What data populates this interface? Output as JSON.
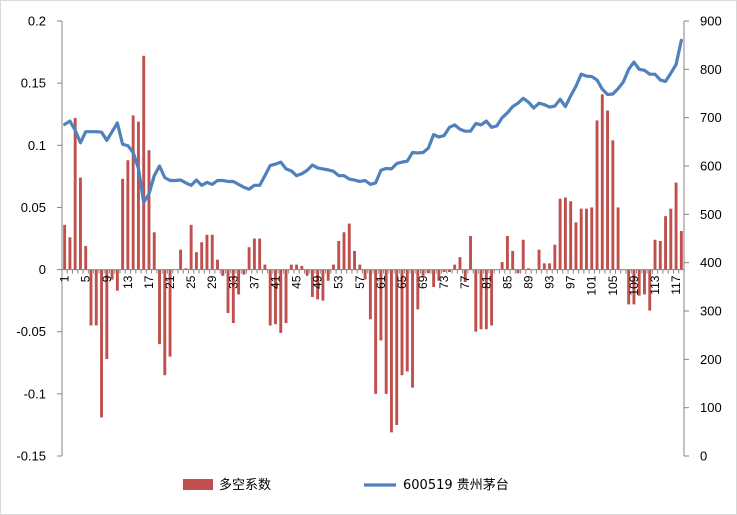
{
  "chart_data": {
    "type": "bar+line",
    "legend_position": "bottom",
    "grid": false,
    "colors": {
      "bar": "#C0504D",
      "line": "#4F81BD",
      "axis": "#868686"
    },
    "left_axis": {
      "ylim": [
        -0.15,
        0.2
      ],
      "tick_values": [
        -0.15,
        -0.1,
        -0.05,
        0,
        0.05,
        0.1,
        0.15,
        0.2
      ],
      "tick_labels": [
        "-0.15",
        "-0.1",
        "-0.05",
        "0",
        "0.05",
        "0.1",
        "0.15",
        "0.2"
      ]
    },
    "right_axis": {
      "ylim": [
        0,
        900
      ],
      "tick_values": [
        0,
        100,
        200,
        300,
        400,
        500,
        600,
        700,
        800,
        900
      ],
      "tick_labels": [
        "0",
        "100",
        "200",
        "300",
        "400",
        "500",
        "600",
        "700",
        "800",
        "900"
      ]
    },
    "x_axis": {
      "range": [
        1,
        118
      ],
      "tick_values": [
        1,
        5,
        9,
        13,
        17,
        21,
        25,
        29,
        33,
        37,
        41,
        45,
        49,
        53,
        57,
        61,
        65,
        69,
        73,
        77,
        81,
        85,
        89,
        93,
        97,
        101,
        105,
        109,
        113,
        117
      ],
      "tick_labels": [
        "1",
        "5",
        "9",
        "13",
        "17",
        "21",
        "25",
        "29",
        "33",
        "37",
        "41",
        "45",
        "49",
        "53",
        "57",
        "61",
        "65",
        "69",
        "73",
        "77",
        "81",
        "85",
        "89",
        "93",
        "97",
        "101",
        "105",
        "109",
        "113",
        "117"
      ]
    },
    "series": [
      {
        "name": "多空系数",
        "type": "bar",
        "axis": "left",
        "values": [
          0.036,
          0.026,
          0.122,
          0.074,
          0.019,
          -0.045,
          -0.045,
          -0.119,
          -0.072,
          -0.008,
          -0.017,
          0.073,
          0.088,
          0.124,
          0.119,
          0.172,
          0.096,
          0.03,
          -0.06,
          -0.085,
          -0.07,
          0.0,
          0.016,
          0.001,
          0.036,
          0.014,
          0.022,
          0.028,
          0.028,
          0.008,
          -0.005,
          -0.035,
          -0.043,
          -0.02,
          -0.004,
          0.018,
          0.025,
          0.025,
          0.004,
          -0.045,
          -0.044,
          -0.051,
          -0.043,
          0.004,
          0.004,
          0.003,
          -0.005,
          -0.022,
          -0.024,
          -0.025,
          -0.009,
          0.004,
          0.023,
          0.03,
          0.037,
          0.015,
          0.004,
          -0.008,
          -0.04,
          -0.1,
          -0.057,
          -0.1,
          -0.131,
          -0.125,
          -0.085,
          -0.082,
          -0.095,
          -0.032,
          -0.005,
          -0.003,
          -0.014,
          -0.009,
          -0.002,
          -0.002,
          0.004,
          0.01,
          -0.01,
          0.027,
          -0.05,
          -0.048,
          -0.048,
          -0.045,
          0.0,
          0.006,
          0.027,
          0.015,
          -0.003,
          0.024,
          0.001,
          0.0,
          0.016,
          0.005,
          0.005,
          0.02,
          0.057,
          0.058,
          0.055,
          0.038,
          0.049,
          0.049,
          0.05,
          0.12,
          0.141,
          0.128,
          0.104,
          0.05,
          0.0,
          -0.028,
          -0.028,
          -0.021,
          -0.02,
          -0.033,
          0.024,
          0.023,
          0.043,
          0.049,
          0.07,
          0.031
        ]
      },
      {
        "name": "600519 贵州茅台",
        "type": "line",
        "axis": "right",
        "values": [
          686,
          693,
          674,
          648,
          671,
          671,
          671,
          670,
          653,
          671,
          689,
          645,
          642,
          628,
          595,
          525,
          542,
          580,
          600,
          576,
          570,
          570,
          571,
          565,
          560,
          571,
          560,
          566,
          562,
          570,
          570,
          568,
          568,
          562,
          556,
          552,
          560,
          560,
          580,
          601,
          604,
          608,
          594,
          590,
          580,
          584,
          591,
          602,
          596,
          594,
          592,
          589,
          580,
          580,
          573,
          571,
          568,
          570,
          562,
          565,
          591,
          595,
          594,
          605,
          608,
          610,
          628,
          627,
          628,
          637,
          665,
          660,
          663,
          680,
          685,
          676,
          672,
          672,
          688,
          685,
          693,
          680,
          683,
          700,
          710,
          723,
          730,
          740,
          732,
          720,
          730,
          727,
          722,
          724,
          738,
          723,
          745,
          765,
          790,
          786,
          785,
          778,
          759,
          748,
          749,
          760,
          774,
          800,
          815,
          800,
          798,
          790,
          790,
          778,
          775,
          792,
          810,
          860
        ]
      }
    ]
  }
}
